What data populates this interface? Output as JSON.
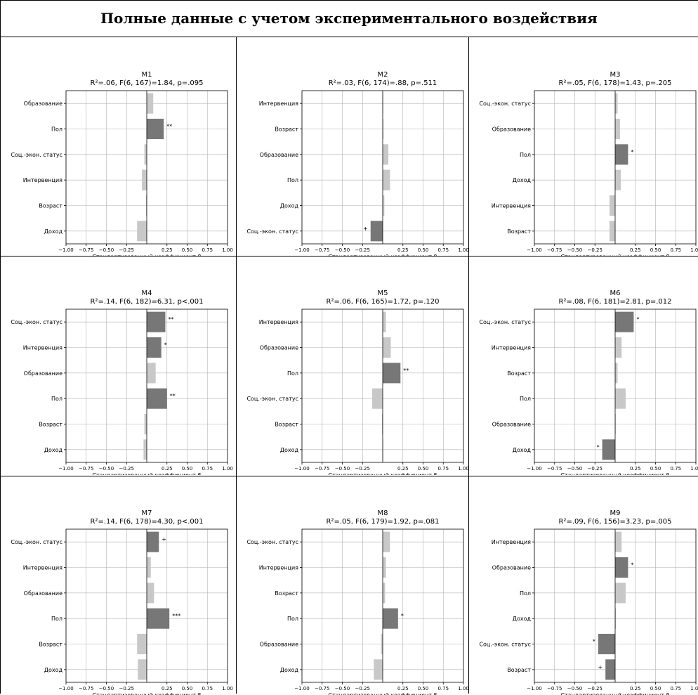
{
  "page": {
    "title": "Полные данные с учетом экспериментального воздействия"
  },
  "colors": {
    "significant": "#777777",
    "nonsignificant": "#c8c8c8",
    "grid": "#b0b0b0",
    "axis": "#000000"
  },
  "chart_data": [
    {
      "type": "bar",
      "orientation": "horizontal",
      "title": "M1",
      "subtitle": "R²=.06, F(6, 167)=1.84, p=.095",
      "xlabel": "Стандартизованный коэффициент β",
      "xlim": [
        -1.0,
        1.0
      ],
      "xticks": [
        "−1.00",
        "−0.75",
        "−0.50",
        "−0.25",
        "0.25",
        "0.50",
        "0.75",
        "1.00"
      ],
      "grid": true,
      "categories": [
        "Образование",
        "Пол",
        "Соц.-экон. статус",
        "Интервенция",
        "Возраст",
        "Доход"
      ],
      "values": [
        0.08,
        0.21,
        -0.03,
        -0.06,
        -0.01,
        -0.12
      ],
      "significance": [
        "",
        "**",
        "",
        "",
        "",
        ""
      ]
    },
    {
      "type": "bar",
      "orientation": "horizontal",
      "title": "M2",
      "subtitle": "R²=.03, F(6, 174)=.88, p=.511",
      "xlabel": "Стандартизованный коэффициент β",
      "xlim": [
        -1.0,
        1.0
      ],
      "xticks": [
        "−1.00",
        "−0.75",
        "−0.50",
        "−0.25",
        "0.25",
        "0.50",
        "0.75",
        "1.00"
      ],
      "grid": true,
      "categories": [
        "Интервенция",
        "Возраст",
        "Образование",
        "Пол",
        "Доход",
        "Соц.-экон. статус"
      ],
      "values": [
        0.0,
        0.01,
        0.07,
        0.09,
        0.02,
        -0.15
      ],
      "significance": [
        "",
        "",
        "",
        "",
        "",
        "+"
      ]
    },
    {
      "type": "bar",
      "orientation": "horizontal",
      "title": "M3",
      "subtitle": "R²=.05, F(6, 178)=1.43, p=.205",
      "xlabel": "Стандартизованный коэффициент β",
      "xlim": [
        -1.0,
        1.0
      ],
      "xticks": [
        "−1.00",
        "−0.75",
        "−0.50",
        "−0.25",
        "0.25",
        "0.50",
        "0.75",
        "1.00"
      ],
      "grid": true,
      "categories": [
        "Соц.-экон. статус",
        "Образование",
        "Пол",
        "Доход",
        "Интервенция",
        "Возраст"
      ],
      "values": [
        0.03,
        0.06,
        0.16,
        0.07,
        -0.07,
        -0.07
      ],
      "significance": [
        "",
        "",
        "*",
        "",
        "",
        ""
      ]
    },
    {
      "type": "bar",
      "orientation": "horizontal",
      "title": "M4",
      "subtitle": "R²=.14, F(6, 182)=6.31, p<.001",
      "xlabel": "Стандартизованный коэффициент β",
      "xlim": [
        -1.0,
        1.0
      ],
      "xticks": [
        "−1.00",
        "−0.75",
        "−0.50",
        "−0.25",
        "0.25",
        "0.50",
        "0.75",
        "1.00"
      ],
      "grid": true,
      "categories": [
        "Соц.-экон. статус",
        "Интервенция",
        "Образование",
        "Пол",
        "Возраст",
        "Доход"
      ],
      "values": [
        0.23,
        0.18,
        0.11,
        0.25,
        -0.03,
        -0.04
      ],
      "significance": [
        "**",
        "*",
        "",
        "**",
        "",
        ""
      ]
    },
    {
      "type": "bar",
      "orientation": "horizontal",
      "title": "M5",
      "subtitle": "R²=.06, F(6, 165)=1.72, p=.120",
      "xlabel": "Стандартизованный коэффициент β",
      "xlim": [
        -1.0,
        1.0
      ],
      "xticks": [
        "−1.00",
        "−0.75",
        "−0.50",
        "−0.25",
        "0.25",
        "0.50",
        "0.75",
        "1.00"
      ],
      "grid": true,
      "categories": [
        "Интервенция",
        "Образование",
        "Пол",
        "Соц.-экон. статус",
        "Возраст",
        "Доход"
      ],
      "values": [
        0.04,
        0.1,
        0.22,
        -0.13,
        -0.01,
        0.0
      ],
      "significance": [
        "",
        "",
        "**",
        "",
        "",
        ""
      ]
    },
    {
      "type": "bar",
      "orientation": "horizontal",
      "title": "M6",
      "subtitle": "R²=.08, F(6, 181)=2.81, p=.012",
      "xlabel": "Стандартизованный коэффициент β",
      "xlim": [
        -1.0,
        1.0
      ],
      "xticks": [
        "−1.00",
        "−0.75",
        "−0.50",
        "−0.25",
        "0.25",
        "0.50",
        "0.75",
        "1.00"
      ],
      "grid": true,
      "categories": [
        "Соц.-экон. статус",
        "Интервенция",
        "Возраст",
        "Пол",
        "Образование",
        "Доход"
      ],
      "values": [
        0.23,
        0.08,
        0.03,
        0.13,
        0.0,
        -0.16
      ],
      "significance": [
        "*",
        "",
        "",
        "",
        "",
        "*"
      ]
    },
    {
      "type": "bar",
      "orientation": "horizontal",
      "title": "M7",
      "subtitle": "R²=.14, F(6, 178)=4.30, p<.001",
      "xlabel": "Стандартизованный коэффициент β",
      "xlim": [
        -1.0,
        1.0
      ],
      "xticks": [
        "−1.00",
        "−0.75",
        "−0.50",
        "−0.25",
        "0.25",
        "0.50",
        "0.75",
        "1.00"
      ],
      "grid": true,
      "categories": [
        "Соц.-экон. статус",
        "Интервенция",
        "Образование",
        "Пол",
        "Возраст",
        "Доход"
      ],
      "values": [
        0.15,
        0.05,
        0.09,
        0.28,
        -0.12,
        -0.11
      ],
      "significance": [
        "+",
        "",
        "",
        "***",
        "",
        ""
      ]
    },
    {
      "type": "bar",
      "orientation": "horizontal",
      "title": "M8",
      "subtitle": "R²=.05, F(6, 179)=1.92, p=.081",
      "xlabel": "Стандартизованный коэффициент β",
      "xlim": [
        -1.0,
        1.0
      ],
      "xticks": [
        "−1.00",
        "−0.75",
        "−0.50",
        "−0.25",
        "0.25",
        "0.50",
        "0.75",
        "1.00"
      ],
      "grid": true,
      "categories": [
        "Соц.-экон. статус",
        "Интервенция",
        "Возраст",
        "Пол",
        "Образование",
        "Доход"
      ],
      "values": [
        0.09,
        0.04,
        0.03,
        0.19,
        -0.02,
        -0.11
      ],
      "significance": [
        "",
        "",
        "",
        "*",
        "",
        ""
      ]
    },
    {
      "type": "bar",
      "orientation": "horizontal",
      "title": "M9",
      "subtitle": "R²=.09, F(6, 156)=3.23, p=.005",
      "xlabel": "Стандартизованный коэффициент β",
      "xlim": [
        -1.0,
        1.0
      ],
      "xticks": [
        "−1.00",
        "−0.75",
        "−0.50",
        "−0.25",
        "0.25",
        "0.50",
        "0.75",
        "1.00"
      ],
      "grid": true,
      "categories": [
        "Интервенция",
        "Образование",
        "Пол",
        "Доход",
        "Соц.-экон. статус",
        "Возраст"
      ],
      "values": [
        0.08,
        0.16,
        0.13,
        0.01,
        -0.21,
        -0.12
      ],
      "significance": [
        "",
        "*",
        "",
        "",
        "*",
        "+"
      ]
    }
  ]
}
